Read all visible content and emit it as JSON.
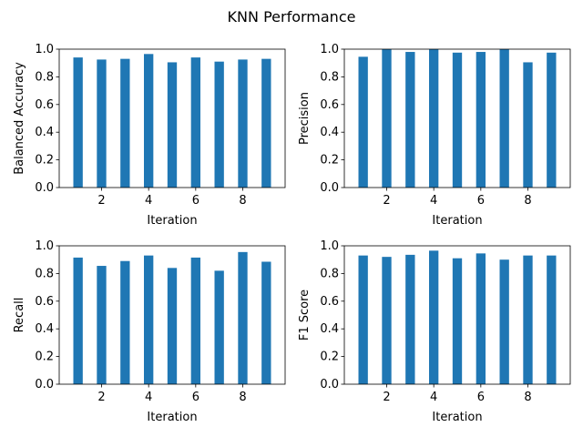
{
  "suptitle": "KNN Performance",
  "colors": {
    "bar": "#1f77b4",
    "axes": "#000000",
    "background": "#ffffff"
  },
  "chart_data": [
    {
      "type": "bar",
      "x": [
        1,
        2,
        3,
        4,
        5,
        6,
        7,
        8,
        9
      ],
      "values": [
        0.94,
        0.925,
        0.93,
        0.965,
        0.905,
        0.94,
        0.91,
        0.925,
        0.93
      ],
      "xlabel": "Iteration",
      "ylabel": "Balanced Accuracy",
      "xticks": [
        2,
        4,
        6,
        8
      ],
      "yticks": [
        0.0,
        0.2,
        0.4,
        0.6,
        0.8,
        1.0
      ],
      "xlim": [
        0.2,
        9.8
      ],
      "ylim": [
        0,
        1
      ],
      "grid": false
    },
    {
      "type": "bar",
      "x": [
        1,
        2,
        3,
        4,
        5,
        6,
        7,
        8,
        9
      ],
      "values": [
        0.945,
        1.0,
        0.98,
        1.0,
        0.975,
        0.98,
        1.0,
        0.905,
        0.975
      ],
      "xlabel": "Iteration",
      "ylabel": "Precision",
      "xticks": [
        2,
        4,
        6,
        8
      ],
      "yticks": [
        0.0,
        0.2,
        0.4,
        0.6,
        0.8,
        1.0
      ],
      "xlim": [
        0.2,
        9.8
      ],
      "ylim": [
        0,
        1
      ],
      "grid": false
    },
    {
      "type": "bar",
      "x": [
        1,
        2,
        3,
        4,
        5,
        6,
        7,
        8,
        9
      ],
      "values": [
        0.915,
        0.855,
        0.89,
        0.93,
        0.84,
        0.915,
        0.82,
        0.955,
        0.885
      ],
      "xlabel": "Iteration",
      "ylabel": "Recall",
      "xticks": [
        2,
        4,
        6,
        8
      ],
      "yticks": [
        0.0,
        0.2,
        0.4,
        0.6,
        0.8,
        1.0
      ],
      "xlim": [
        0.2,
        9.8
      ],
      "ylim": [
        0,
        1
      ],
      "grid": false
    },
    {
      "type": "bar",
      "x": [
        1,
        2,
        3,
        4,
        5,
        6,
        7,
        8,
        9
      ],
      "values": [
        0.93,
        0.92,
        0.935,
        0.965,
        0.91,
        0.945,
        0.9,
        0.93,
        0.93
      ],
      "xlabel": "Iteration",
      "ylabel": "F1 Score",
      "xticks": [
        2,
        4,
        6,
        8
      ],
      "yticks": [
        0.0,
        0.2,
        0.4,
        0.6,
        0.8,
        1.0
      ],
      "xlim": [
        0.2,
        9.8
      ],
      "ylim": [
        0,
        1
      ],
      "grid": false
    }
  ]
}
